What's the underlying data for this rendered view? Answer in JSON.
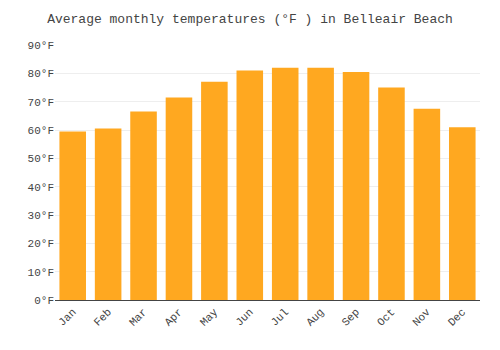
{
  "chart_data": {
    "type": "bar",
    "title": "Average monthly temperatures (°F ) in Belleair Beach",
    "categories": [
      "Jan",
      "Feb",
      "Mar",
      "Apr",
      "May",
      "Jun",
      "Jul",
      "Aug",
      "Sep",
      "Oct",
      "Nov",
      "Dec"
    ],
    "values": [
      59.5,
      60.5,
      66.5,
      71.5,
      77,
      81,
      82,
      82,
      80.5,
      75,
      67.5,
      61
    ],
    "color": "#FFA820",
    "ylim": [
      0,
      90
    ],
    "yticks": [
      {
        "value": 0,
        "label": "0°F"
      },
      {
        "value": 10,
        "label": "10°F"
      },
      {
        "value": 20,
        "label": "20°F"
      },
      {
        "value": 30,
        "label": "30°F"
      },
      {
        "value": 40,
        "label": "40°F"
      },
      {
        "value": 50,
        "label": "50°F"
      },
      {
        "value": 60,
        "label": "60°F"
      },
      {
        "value": 70,
        "label": "70°F"
      },
      {
        "value": 80,
        "label": "80°F"
      },
      {
        "value": 90,
        "label": "90°F"
      }
    ],
    "grid": true
  }
}
